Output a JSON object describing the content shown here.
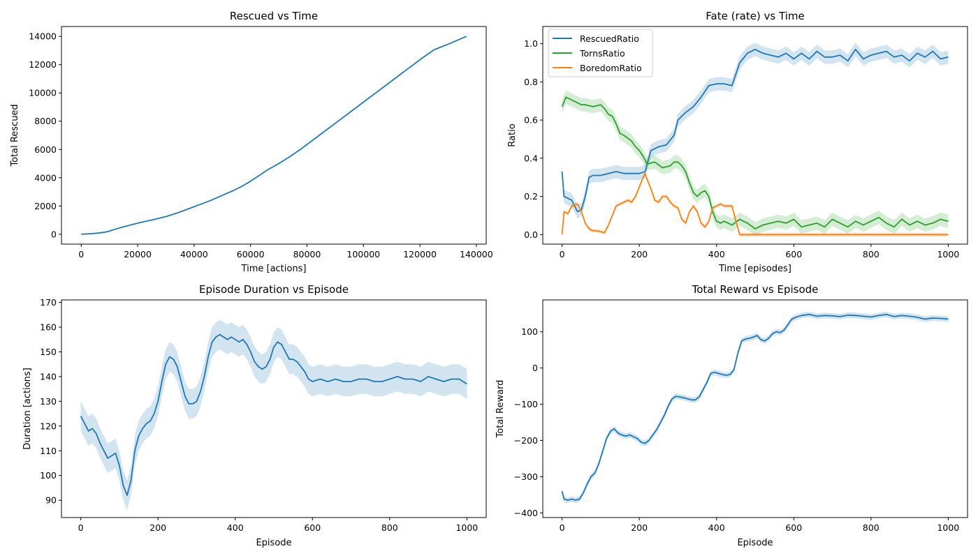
{
  "colors": {
    "blue": "#1f77b4",
    "green": "#2ca02c",
    "orange": "#ff7f0e"
  },
  "chart_data": [
    {
      "type": "line",
      "title": "Rescued vs Time",
      "xlabel": "Time [actions]",
      "ylabel": "Total Rescued",
      "xlim": [
        -7000,
        143500
      ],
      "ylim": [
        -700,
        14700
      ],
      "xticks": [
        0,
        20000,
        40000,
        60000,
        80000,
        100000,
        120000,
        140000
      ],
      "yticks": [
        0,
        2000,
        4000,
        6000,
        8000,
        10000,
        12000,
        14000
      ],
      "series": [
        {
          "name": "Total Rescued",
          "color": "#1f77b4",
          "x": [
            0,
            3000,
            6000,
            8500,
            10000,
            12000,
            14000,
            18000,
            22000,
            26000,
            30000,
            34000,
            38000,
            42000,
            46000,
            50000,
            54000,
            57000,
            60000,
            63000,
            66000,
            70000,
            74000,
            78000,
            82000,
            86000,
            90000,
            95000,
            100000,
            105000,
            110000,
            115000,
            120000,
            125000,
            130000,
            136500
          ],
          "y": [
            0,
            30,
            80,
            150,
            220,
            350,
            470,
            680,
            880,
            1050,
            1250,
            1500,
            1800,
            2100,
            2400,
            2750,
            3100,
            3400,
            3750,
            4150,
            4550,
            5000,
            5500,
            6050,
            6650,
            7250,
            7850,
            8600,
            9350,
            10100,
            10850,
            11600,
            12350,
            13050,
            13450,
            14000
          ]
        }
      ]
    },
    {
      "type": "line",
      "title": "Fate (rate) vs Time",
      "xlabel": "Time [episodes]",
      "ylabel": "Ratio",
      "xlim": [
        -50,
        1050
      ],
      "ylim": [
        -0.05,
        1.09
      ],
      "xticks": [
        0,
        200,
        400,
        600,
        800,
        1000
      ],
      "yticks": [
        0.0,
        0.2,
        0.4,
        0.6,
        0.8,
        1.0
      ],
      "ytick_labels": [
        "0.0",
        "0.2",
        "0.4",
        "0.6",
        "0.8",
        "1.0"
      ],
      "legend": {
        "position": "top-left",
        "entries": [
          "RescuedRatio",
          "TornsRatio",
          "BoredomRatio"
        ]
      },
      "series": [
        {
          "name": "RescuedRatio",
          "color": "#1f77b4",
          "band": 0.035,
          "x": [
            0,
            5,
            15,
            25,
            40,
            50,
            60,
            70,
            80,
            100,
            120,
            140,
            160,
            180,
            200,
            215,
            230,
            250,
            270,
            290,
            300,
            320,
            340,
            360,
            380,
            400,
            420,
            440,
            460,
            480,
            500,
            520,
            540,
            560,
            580,
            600,
            620,
            640,
            660,
            680,
            700,
            720,
            740,
            760,
            780,
            800,
            820,
            840,
            860,
            880,
            900,
            920,
            940,
            960,
            980,
            1000
          ],
          "y": [
            0.33,
            0.2,
            0.19,
            0.18,
            0.12,
            0.13,
            0.2,
            0.3,
            0.31,
            0.31,
            0.32,
            0.33,
            0.32,
            0.32,
            0.32,
            0.33,
            0.44,
            0.46,
            0.47,
            0.52,
            0.6,
            0.64,
            0.67,
            0.72,
            0.78,
            0.79,
            0.79,
            0.78,
            0.9,
            0.95,
            0.97,
            0.95,
            0.94,
            0.93,
            0.95,
            0.92,
            0.95,
            0.92,
            0.96,
            0.93,
            0.93,
            0.94,
            0.91,
            0.97,
            0.92,
            0.94,
            0.95,
            0.96,
            0.93,
            0.94,
            0.91,
            0.95,
            0.93,
            0.96,
            0.92,
            0.93
          ]
        },
        {
          "name": "TornsRatio",
          "color": "#2ca02c",
          "band": 0.035,
          "x": [
            0,
            10,
            30,
            50,
            60,
            80,
            100,
            110,
            120,
            130,
            140,
            150,
            160,
            180,
            190,
            200,
            210,
            220,
            240,
            260,
            280,
            290,
            300,
            310,
            320,
            330,
            340,
            350,
            360,
            370,
            380,
            390,
            400,
            410,
            420,
            440,
            460,
            480,
            500,
            520,
            540,
            560,
            580,
            600,
            620,
            640,
            660,
            680,
            700,
            720,
            740,
            760,
            780,
            800,
            820,
            840,
            860,
            880,
            900,
            920,
            940,
            960,
            980,
            1000
          ],
          "y": [
            0.67,
            0.72,
            0.7,
            0.68,
            0.68,
            0.67,
            0.68,
            0.66,
            0.63,
            0.62,
            0.58,
            0.53,
            0.52,
            0.49,
            0.46,
            0.44,
            0.41,
            0.37,
            0.38,
            0.35,
            0.36,
            0.38,
            0.38,
            0.36,
            0.33,
            0.27,
            0.22,
            0.2,
            0.22,
            0.23,
            0.2,
            0.12,
            0.07,
            0.06,
            0.07,
            0.05,
            0.08,
            0.06,
            0.03,
            0.05,
            0.06,
            0.07,
            0.06,
            0.08,
            0.04,
            0.05,
            0.06,
            0.04,
            0.08,
            0.06,
            0.04,
            0.07,
            0.05,
            0.07,
            0.09,
            0.06,
            0.04,
            0.08,
            0.05,
            0.07,
            0.05,
            0.06,
            0.08,
            0.07
          ]
        },
        {
          "name": "BoredomRatio",
          "color": "#ff7f0e",
          "band": 0.01,
          "x": [
            0,
            5,
            15,
            25,
            40,
            50,
            60,
            70,
            80,
            90,
            110,
            120,
            130,
            140,
            150,
            160,
            170,
            180,
            190,
            200,
            210,
            215,
            220,
            230,
            240,
            250,
            260,
            270,
            280,
            290,
            300,
            310,
            320,
            330,
            340,
            350,
            360,
            370,
            380,
            390,
            400,
            410,
            420,
            440,
            450,
            460,
            480,
            500,
            600,
            700,
            800,
            900,
            1000
          ],
          "y": [
            0.0,
            0.12,
            0.11,
            0.15,
            0.16,
            0.12,
            0.06,
            0.03,
            0.02,
            0.02,
            0.01,
            0.05,
            0.1,
            0.15,
            0.16,
            0.17,
            0.18,
            0.17,
            0.2,
            0.25,
            0.3,
            0.32,
            0.29,
            0.24,
            0.18,
            0.17,
            0.2,
            0.2,
            0.17,
            0.15,
            0.14,
            0.08,
            0.06,
            0.12,
            0.15,
            0.12,
            0.06,
            0.04,
            0.07,
            0.14,
            0.15,
            0.16,
            0.15,
            0.15,
            0.07,
            0.0,
            0.0,
            0.0,
            0.0,
            0.0,
            0.0,
            0.0,
            0.0
          ]
        }
      ]
    },
    {
      "type": "line",
      "title": "Episode Duration vs Episode",
      "xlabel": "Episode",
      "ylabel": "Duration [actions]",
      "xlim": [
        -50,
        1050
      ],
      "ylim": [
        83,
        171
      ],
      "xticks": [
        0,
        200,
        400,
        600,
        800,
        1000
      ],
      "yticks": [
        90,
        100,
        110,
        120,
        130,
        140,
        150,
        160,
        170
      ],
      "series": [
        {
          "name": "Duration",
          "color": "#1f77b4",
          "band": 6,
          "x": [
            0,
            10,
            20,
            30,
            40,
            50,
            60,
            70,
            80,
            90,
            100,
            110,
            120,
            130,
            140,
            150,
            160,
            170,
            180,
            190,
            200,
            210,
            220,
            230,
            240,
            250,
            260,
            270,
            280,
            290,
            300,
            310,
            320,
            330,
            340,
            350,
            360,
            370,
            380,
            390,
            400,
            410,
            420,
            430,
            440,
            450,
            460,
            470,
            480,
            490,
            500,
            510,
            520,
            530,
            540,
            550,
            560,
            570,
            580,
            590,
            600,
            620,
            640,
            660,
            680,
            700,
            720,
            740,
            760,
            780,
            800,
            820,
            840,
            860,
            880,
            900,
            920,
            940,
            960,
            980,
            1000
          ],
          "y": [
            124,
            121,
            118,
            119,
            117,
            113,
            110,
            107,
            108,
            109,
            104,
            96,
            92,
            98,
            110,
            116,
            119,
            121,
            122,
            125,
            130,
            138,
            145,
            148,
            147,
            144,
            138,
            132,
            129,
            129,
            130,
            134,
            140,
            148,
            154,
            156,
            157,
            156,
            155,
            156,
            155,
            154,
            155,
            153,
            150,
            146,
            144,
            143,
            144,
            147,
            152,
            154,
            153,
            150,
            147,
            147,
            146,
            144,
            142,
            139,
            138,
            139,
            138,
            139,
            138,
            138,
            139,
            139,
            138,
            138,
            139,
            140,
            139,
            139,
            138,
            140,
            139,
            138,
            139,
            139,
            137
          ]
        }
      ]
    },
    {
      "type": "line",
      "title": "Total Reward vs Episode",
      "xlabel": "Episode",
      "ylabel": "Total Reward",
      "xlim": [
        -50,
        1050
      ],
      "ylim": [
        -413,
        188
      ],
      "xticks": [
        0,
        200,
        400,
        600,
        800,
        1000
      ],
      "yticks": [
        -400,
        -300,
        -200,
        -100,
        0,
        100
      ],
      "ytick_labels": [
        "−400",
        "−300",
        "−200",
        "−100",
        "0",
        "100"
      ],
      "series": [
        {
          "name": "Total Reward",
          "color": "#1f77b4",
          "band": 8,
          "x": [
            0,
            5,
            15,
            25,
            35,
            45,
            55,
            65,
            75,
            85,
            95,
            105,
            115,
            125,
            135,
            145,
            155,
            165,
            175,
            185,
            195,
            205,
            215,
            225,
            235,
            245,
            255,
            265,
            275,
            285,
            295,
            305,
            315,
            325,
            335,
            345,
            355,
            365,
            375,
            385,
            395,
            405,
            415,
            425,
            435,
            445,
            455,
            465,
            475,
            485,
            495,
            505,
            515,
            525,
            535,
            545,
            555,
            565,
            575,
            585,
            595,
            605,
            620,
            640,
            660,
            680,
            700,
            720,
            740,
            760,
            780,
            800,
            820,
            840,
            860,
            880,
            900,
            920,
            940,
            960,
            980,
            1000
          ],
          "y": [
            -340,
            -362,
            -365,
            -362,
            -365,
            -362,
            -345,
            -320,
            -300,
            -290,
            -265,
            -230,
            -195,
            -175,
            -168,
            -180,
            -185,
            -188,
            -185,
            -190,
            -195,
            -205,
            -208,
            -200,
            -185,
            -170,
            -150,
            -130,
            -105,
            -85,
            -78,
            -80,
            -82,
            -85,
            -88,
            -88,
            -80,
            -60,
            -40,
            -15,
            -12,
            -15,
            -18,
            -20,
            -18,
            -5,
            40,
            75,
            80,
            82,
            85,
            90,
            78,
            75,
            82,
            95,
            100,
            98,
            105,
            120,
            135,
            140,
            145,
            148,
            143,
            145,
            144,
            142,
            146,
            145,
            143,
            141,
            145,
            148,
            142,
            145,
            143,
            140,
            135,
            138,
            137,
            135
          ]
        }
      ]
    }
  ]
}
